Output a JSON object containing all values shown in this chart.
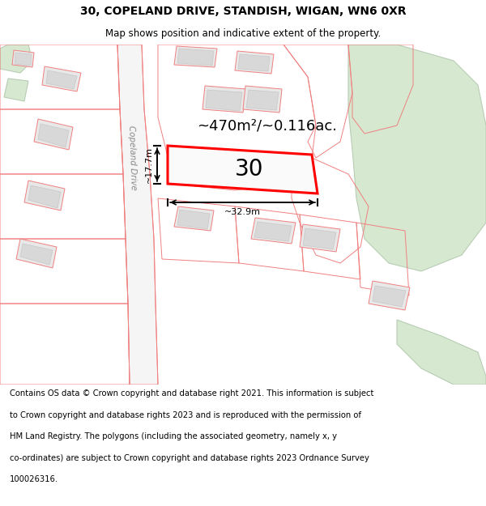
{
  "title": "30, COPELAND DRIVE, STANDISH, WIGAN, WN6 0XR",
  "subtitle": "Map shows position and indicative extent of the property.",
  "footer_lines": [
    "Contains OS data © Crown copyright and database right 2021. This information is subject",
    "to Crown copyright and database rights 2023 and is reproduced with the permission of",
    "HM Land Registry. The polygons (including the associated geometry, namely x, y",
    "co-ordinates) are subject to Crown copyright and database rights 2023 Ordnance Survey",
    "100026316."
  ],
  "area_label": "~470m²/~0.116ac.",
  "number_label": "30",
  "width_label": "~32.9m",
  "height_label": "~17.7m",
  "road_label": "Copeland Drive",
  "bg": "#ffffff",
  "building_fill": "#e8e8e8",
  "building_stroke": "#c8c8c8",
  "plot_stroke": "#ff0000",
  "road_stroke": "#f08080",
  "green_fill": "#d6e8d0",
  "green_stroke": "#b8ccb4",
  "separator_color": "#cccccc",
  "title_fontsize": 10,
  "subtitle_fontsize": 8.5,
  "footer_fontsize": 7.2,
  "area_fontsize": 13,
  "number_fontsize": 20,
  "road_fontsize": 7.5,
  "dim_fontsize": 8
}
